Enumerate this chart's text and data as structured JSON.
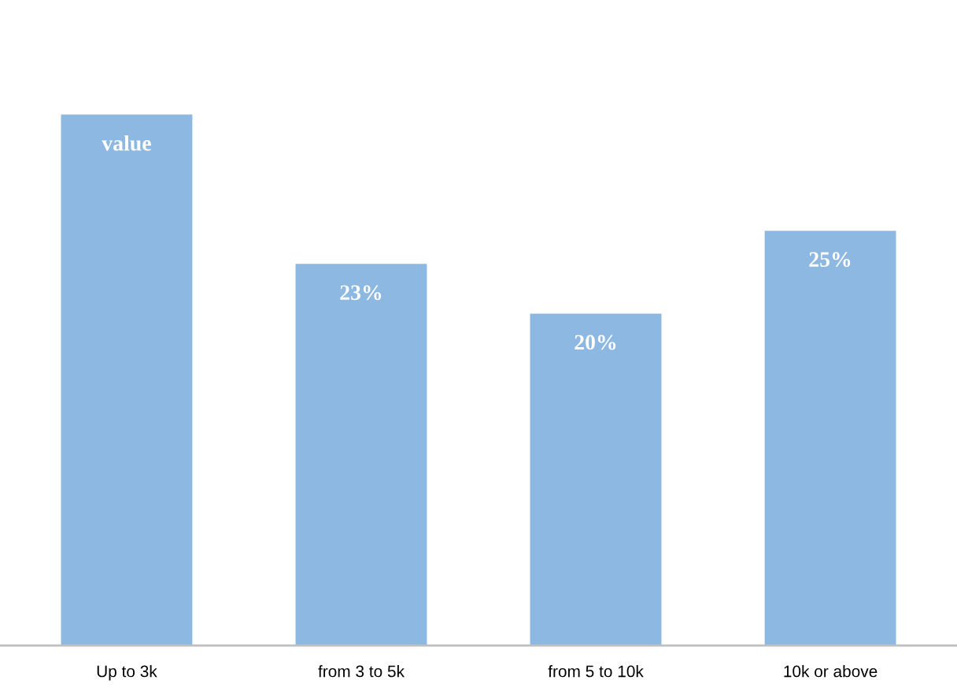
{
  "chart_data": {
    "type": "bar",
    "categories": [
      "Up to 3k",
      "from 3 to 5k",
      "from 5 to 10k",
      "10k or above"
    ],
    "values": [
      32,
      23,
      20,
      25
    ],
    "value_labels": [
      "value",
      "23%",
      "20%",
      "25%"
    ],
    "color": "#8db8e2",
    "grid": false
  }
}
